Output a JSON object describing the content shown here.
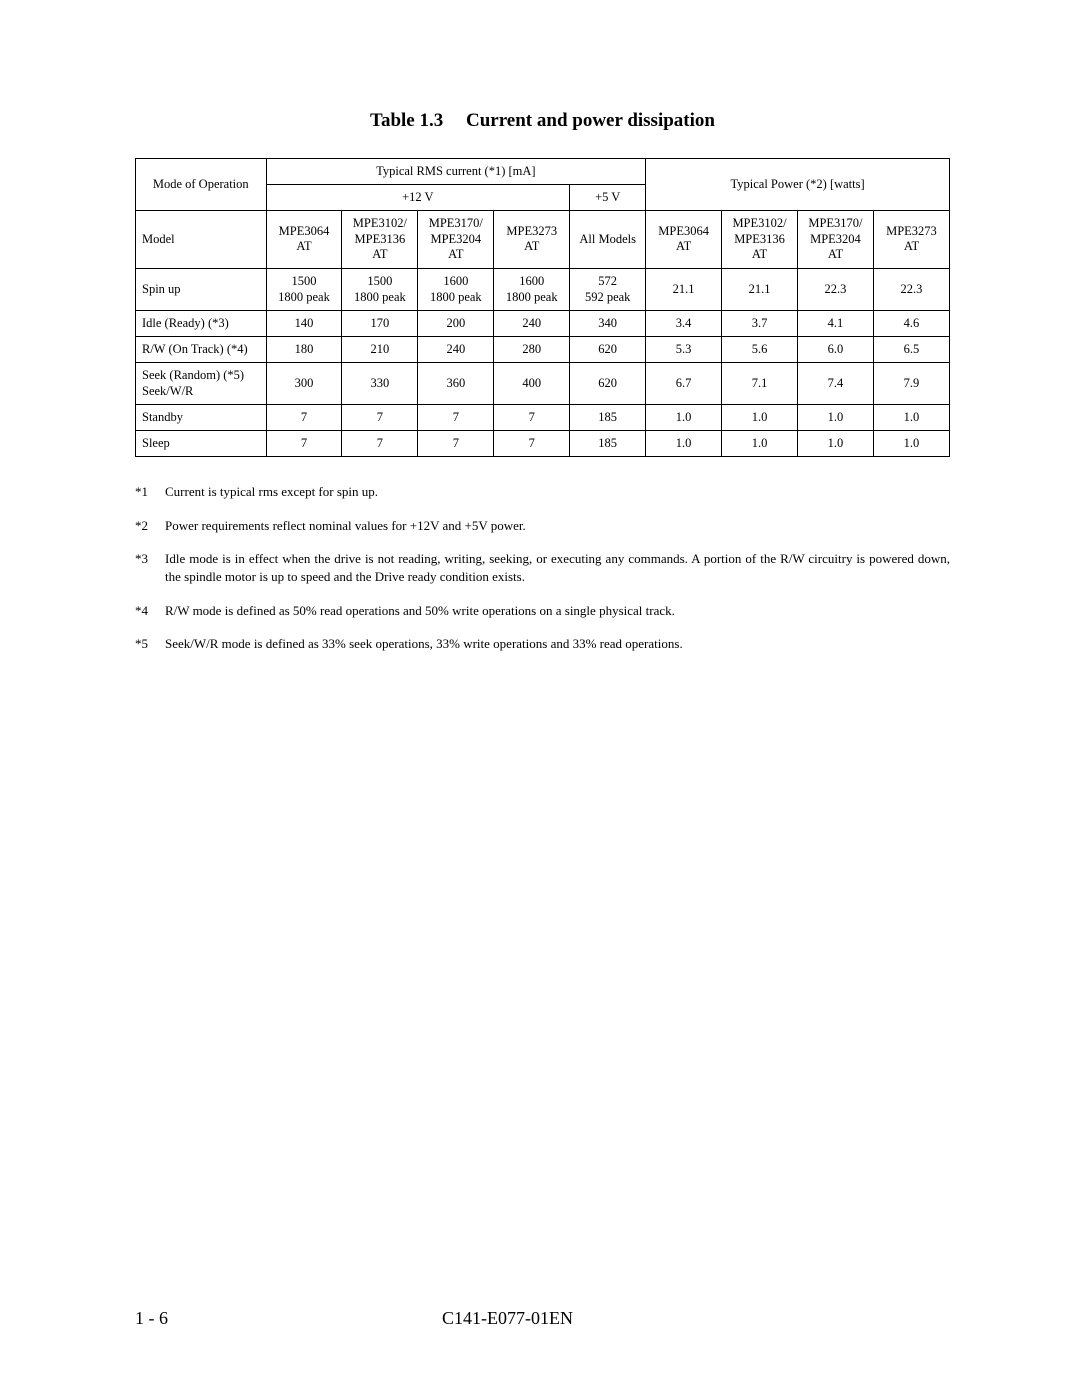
{
  "caption": {
    "label": "Table 1.3",
    "title": "Current and power dissipation"
  },
  "header": {
    "mode": "Mode of Operation",
    "rms": "Typical RMS current (*1) [mA]",
    "pwr": "Typical Power (*2)  [watts]",
    "v12": "+12 V",
    "v5": "+5 V"
  },
  "models": {
    "label": "Model",
    "c12": [
      "MPE3064\nAT",
      "MPE3102/\nMPE3136\nAT",
      "MPE3170/\nMPE3204\nAT",
      "MPE3273\nAT"
    ],
    "c5": "All Models",
    "pwr": [
      "MPE3064\nAT",
      "MPE3102/\nMPE3136\nAT",
      "MPE3170/\nMPE3204\nAT",
      "MPE3273\nAT"
    ]
  },
  "rows": [
    {
      "mode": "Spin up",
      "v12": [
        "1500\n1800 peak",
        "1500\n1800 peak",
        "1600\n1800 peak",
        "1600\n1800 peak"
      ],
      "v5": "572\n592 peak",
      "pwr": [
        "21.1",
        "21.1",
        "22.3",
        "22.3"
      ]
    },
    {
      "mode": "Idle (Ready)  (*3)",
      "v12": [
        "140",
        "170",
        "200",
        "240"
      ],
      "v5": "340",
      "pwr": [
        "3.4",
        "3.7",
        "4.1",
        "4.6"
      ]
    },
    {
      "mode": "R/W (On Track)  (*4)",
      "v12": [
        "180",
        "210",
        "240",
        "280"
      ],
      "v5": "620",
      "pwr": [
        "5.3",
        "5.6",
        "6.0",
        "6.5"
      ]
    },
    {
      "mode": "Seek (Random)  (*5)\nSeek/W/R",
      "v12": [
        "300",
        "330",
        "360",
        "400"
      ],
      "v5": "620",
      "pwr": [
        "6.7",
        "7.1",
        "7.4",
        "7.9"
      ]
    },
    {
      "mode": "Standby",
      "v12": [
        "7",
        "7",
        "7",
        "7"
      ],
      "v5": "185",
      "pwr": [
        "1.0",
        "1.0",
        "1.0",
        "1.0"
      ]
    },
    {
      "mode": "Sleep",
      "v12": [
        "7",
        "7",
        "7",
        "7"
      ],
      "v5": "185",
      "pwr": [
        "1.0",
        "1.0",
        "1.0",
        "1.0"
      ]
    }
  ],
  "notes": [
    {
      "tag": "*1",
      "text": "Current is typical rms except for spin up."
    },
    {
      "tag": "*2",
      "text": "Power requirements reflect nominal values for +12V and +5V power."
    },
    {
      "tag": "*3",
      "text": "Idle mode is in effect when the drive is not reading, writing, seeking, or executing any commands.  A portion of the R/W circuitry is powered down, the spindle motor is up to speed and the Drive ready condition exists."
    },
    {
      "tag": "*4",
      "text": "R/W mode is defined as 50% read operations and 50% write operations on a single physical track."
    },
    {
      "tag": "*5",
      "text": "Seek/W/R mode is defined as 33% seek operations, 33% write operations and 33% read operations."
    }
  ],
  "footer": {
    "page": "1 - 6",
    "doc": "C141-E077-01EN"
  }
}
